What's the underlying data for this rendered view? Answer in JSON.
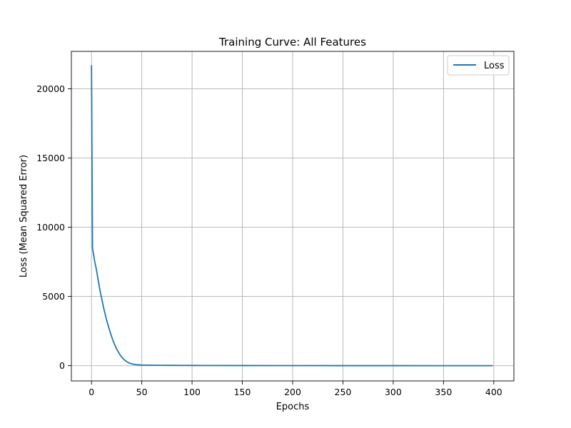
{
  "chart_data": {
    "type": "line",
    "title": "Training Curve: All Features",
    "xlabel": "Epochs",
    "ylabel": "Loss (Mean Squared Error)",
    "xlim": [
      -20,
      420
    ],
    "ylim": [
      -1100,
      22700
    ],
    "xticks": [
      0,
      50,
      100,
      150,
      200,
      250,
      300,
      350,
      400
    ],
    "yticks": [
      0,
      5000,
      10000,
      15000,
      20000
    ],
    "grid": true,
    "legend_position": "top-right",
    "series": [
      {
        "name": "Loss",
        "color": "#1f77b4",
        "x": [
          0,
          1,
          3,
          5,
          8,
          10,
          12,
          15,
          18,
          20,
          22,
          25,
          28,
          30,
          33,
          35,
          38,
          40,
          43,
          45,
          48,
          50,
          60,
          70,
          80,
          100,
          120,
          150,
          200,
          250,
          300,
          350,
          399
        ],
        "y": [
          21700,
          8500,
          7600,
          6900,
          5600,
          4900,
          4200,
          3300,
          2550,
          2100,
          1700,
          1200,
          830,
          620,
          400,
          290,
          180,
          130,
          90,
          70,
          55,
          45,
          35,
          28,
          24,
          18,
          14,
          10,
          7,
          5,
          4,
          3,
          2
        ]
      }
    ]
  }
}
